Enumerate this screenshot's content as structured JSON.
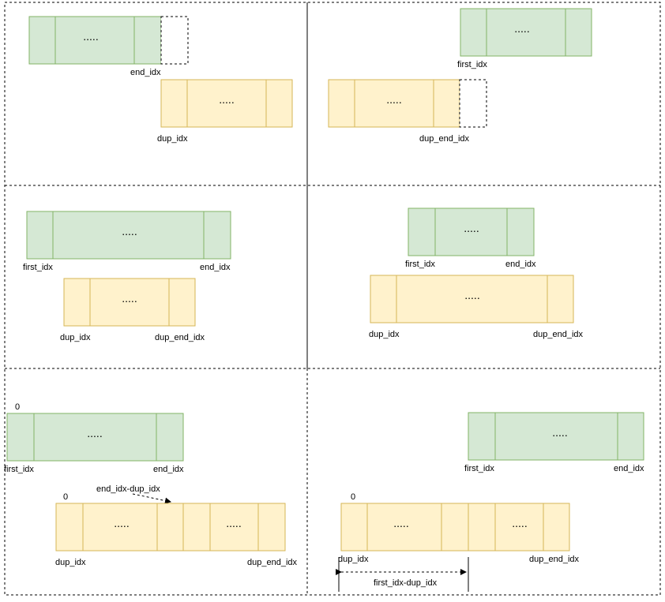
{
  "labels": {
    "end_idx": "end_idx",
    "first_idx": "first_idx",
    "dup_idx": "dup_idx",
    "dup_end_idx": "dup_end_idx",
    "zero": "0",
    "ellipsis": ".....",
    "end_minus_dup": "end_idx-dup_idx",
    "first_minus_dup": "first_idx-dup_idx"
  },
  "colors": {
    "green_fill": "#d5e8d4",
    "green_stroke": "#82b366",
    "yellow_fill": "#fff2cc",
    "yellow_stroke": "#d6b656"
  }
}
